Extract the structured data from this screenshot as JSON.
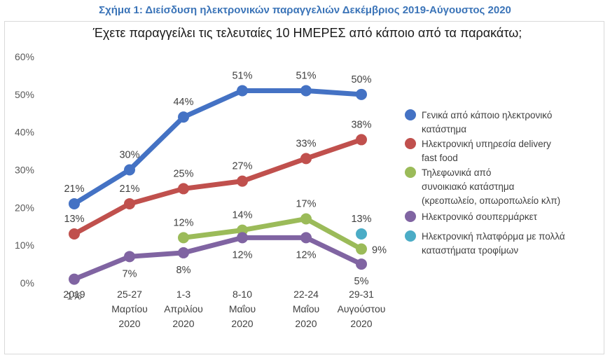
{
  "caption": "Σχήμα 1: Διείσδυση ηλεκτρονικών παραγγελιών Δεκέμβριος 2019-Αύγουστος 2020",
  "chart_data": {
    "type": "line",
    "subtitle": "Έχετε παραγγείλει τις τελευταίες 10 ΗΜΕΡΕΣ από κάποιο από τα παρακάτω;",
    "categories": [
      [
        "2019"
      ],
      [
        "25-27",
        "Μαρτίου",
        "2020"
      ],
      [
        "1-3",
        "Απριλίου",
        "2020"
      ],
      [
        "8-10",
        "Μαΐου",
        "2020"
      ],
      [
        "22-24",
        "Μαΐου",
        "2020"
      ],
      [
        "29-31",
        "Αυγούστου",
        "2020"
      ]
    ],
    "ylim": [
      0,
      60
    ],
    "yticks": [
      0,
      10,
      20,
      30,
      40,
      50,
      60
    ],
    "ytick_labels": [
      "0%",
      "10%",
      "20%",
      "30%",
      "40%",
      "50%",
      "60%"
    ],
    "grid": false,
    "legend_position": "right",
    "series": [
      {
        "name_lines": [
          "Γενικά από κάποιο ηλεκτρονικό",
          "κατάστημα"
        ],
        "color": "#4472c4",
        "values": [
          21,
          30,
          44,
          51,
          51,
          50
        ],
        "labels": [
          "21%",
          "30%",
          "44%",
          "51%",
          "51%",
          "50%"
        ],
        "label_pos": [
          "above",
          "above",
          "above",
          "above",
          "above",
          "above"
        ]
      },
      {
        "name_lines": [
          "Ηλεκτρονική υπηρεσία delivery",
          "fast food"
        ],
        "color": "#c0504d",
        "values": [
          13,
          21,
          25,
          27,
          33,
          38
        ],
        "labels": [
          "13%",
          "21%",
          "25%",
          "27%",
          "33%",
          "38%"
        ],
        "label_pos": [
          "above",
          "above",
          "above",
          "above",
          "above",
          "above"
        ]
      },
      {
        "name_lines": [
          "Τηλεφωνικά από",
          "συνοικιακό κατάστημα",
          "(κρεοπωλείο, οπωροπωλείο κλπ)"
        ],
        "color": "#9bbb59",
        "values": [
          null,
          null,
          12,
          14,
          17,
          9
        ],
        "labels": [
          null,
          null,
          "12%",
          "14%",
          "17%",
          "9%"
        ],
        "label_pos": [
          null,
          null,
          "above",
          "above",
          "above",
          "right"
        ]
      },
      {
        "name_lines": [
          "Ηλεκτρονικό σουπερμάρκετ"
        ],
        "color": "#8064a2",
        "values": [
          1,
          7,
          8,
          12,
          12,
          5
        ],
        "labels": [
          "1%",
          "7%",
          "8%",
          "12%",
          "12%",
          "5%"
        ],
        "label_pos": [
          "below",
          "below",
          "below",
          "below",
          "below",
          "below"
        ]
      },
      {
        "name_lines": [
          "Ηλεκτρονική πλατφόρμα με πολλά",
          "καταστήματα τροφίμων"
        ],
        "color": "#4bacc6",
        "values": [
          null,
          null,
          null,
          null,
          null,
          13
        ],
        "labels": [
          null,
          null,
          null,
          null,
          null,
          "13%"
        ],
        "label_pos": [
          null,
          null,
          null,
          null,
          null,
          "above"
        ]
      }
    ]
  }
}
